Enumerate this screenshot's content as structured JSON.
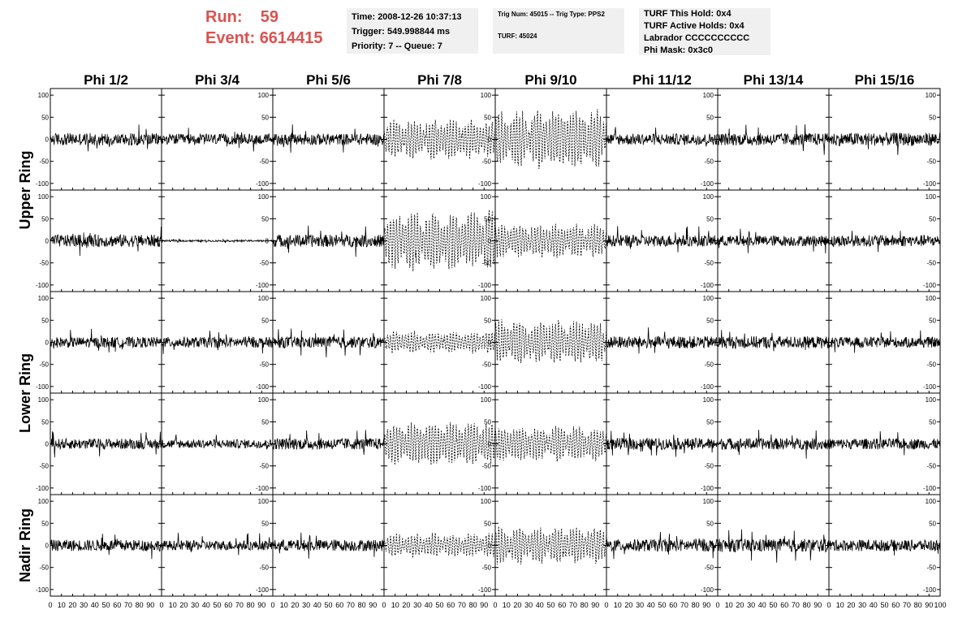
{
  "header": {
    "run_label": "Run:",
    "run_value": "59",
    "event_label": "Event:",
    "event_value": "6614415"
  },
  "info_box_1": {
    "time": "Time: 2008-12-26 10:37:13",
    "trigger": "Trigger: 549.998844 ms",
    "priority": "Priority: 7 -- Queue: 7"
  },
  "info_box_2": {
    "trig": "Trig Num: 45015 -- Trig Type: PPS2",
    "turf": "TURF: 45024"
  },
  "info_box_3": {
    "this_hold": "TURF This Hold: 0x4",
    "active_holds": "TURF Active Holds: 0x4",
    "labrador": "Labrador CCCCCCCCCC",
    "phi_mask": "Phi Mask: 0x3c0"
  },
  "colors": {
    "header_text": "#d9534f",
    "info_bg": "#f0f0f0",
    "trace": "#000000"
  },
  "chart_data": {
    "type": "line",
    "columns": [
      "Phi 1/2",
      "Phi 3/4",
      "Phi 5/6",
      "Phi 7/8",
      "Phi 9/10",
      "Phi 11/12",
      "Phi 13/14",
      "Phi 15/16"
    ],
    "ring_labels": [
      "Upper Ring",
      "Lower Ring",
      "Nadir Ring"
    ],
    "xlim": [
      0,
      100
    ],
    "ylim": [
      -115,
      115
    ],
    "xticks_bottom": [
      "0",
      "10",
      "20",
      "30",
      "40",
      "50",
      "60",
      "70",
      "80",
      "90",
      "100"
    ],
    "yticks": [
      100,
      50,
      0,
      -50,
      -100
    ],
    "grid": false,
    "dashed_columns": [
      3,
      4
    ],
    "amplitudes": [
      [
        14,
        12,
        13,
        40,
        60,
        13,
        14,
        15
      ],
      [
        14,
        2,
        14,
        60,
        35,
        13,
        12,
        13
      ],
      [
        12,
        12,
        13,
        22,
        45,
        14,
        14,
        12
      ],
      [
        12,
        10,
        13,
        45,
        35,
        13,
        13,
        12
      ],
      [
        13,
        11,
        13,
        25,
        38,
        14,
        15,
        13
      ]
    ]
  }
}
